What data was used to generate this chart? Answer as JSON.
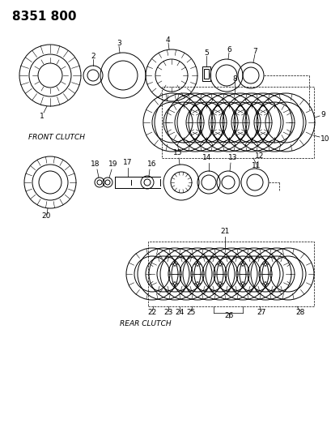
{
  "title": "8351 800",
  "bg_color": "#ffffff",
  "line_color": "#000000",
  "label_front_clutch": "FRONT CLUTCH",
  "label_rear_clutch": "REAR CLUTCH",
  "title_fontsize": 11,
  "label_fontsize": 6.5,
  "number_fontsize": 6.5,
  "parts": {
    "part1_label": "1",
    "part2_label": "2",
    "part3_label": "3",
    "part4_label": "4",
    "part5_label": "5",
    "part6_label": "6",
    "part7_label": "7",
    "part8_label": "8",
    "part9_label": "9",
    "part10_label": "10",
    "part11_label": "11",
    "part12_label": "12",
    "part13_label": "13",
    "part14_label": "14",
    "part15_label": "15",
    "part16_label": "16",
    "part17_label": "17",
    "part18_label": "18",
    "part19_label": "19",
    "part20_label": "20",
    "part21_label": "21",
    "part22_label": "22",
    "part23_label": "23",
    "part24_label": "24",
    "part25_label": "25",
    "part26_label": "26",
    "part27_label": "27",
    "part28_label": "28"
  }
}
